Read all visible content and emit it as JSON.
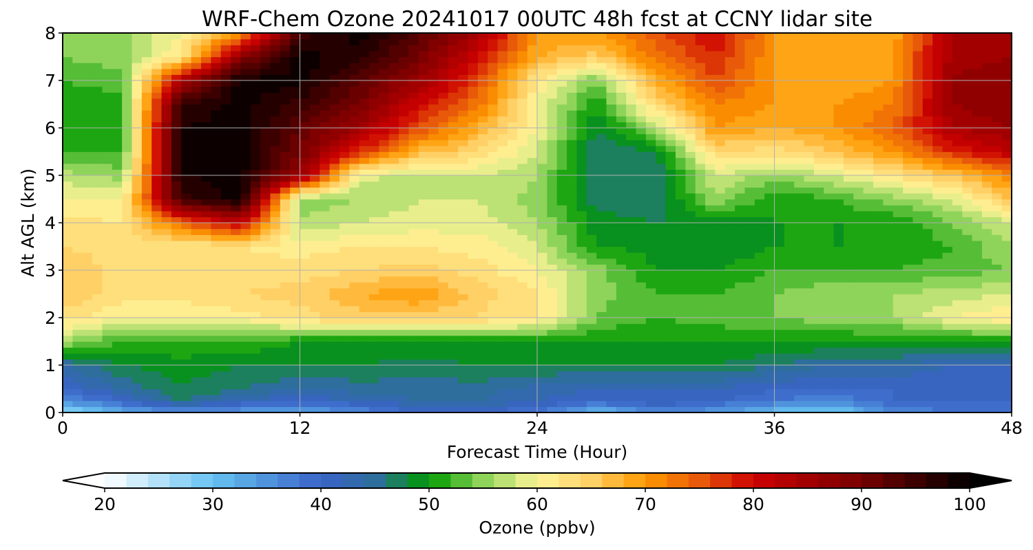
{
  "chart_data": {
    "type": "heatmap",
    "title": "WRF-Chem Ozone  20241017 00UTC 48h fcst at CCNY lidar site",
    "xlabel": "Forecast Time (Hour)",
    "ylabel": "Alt AGL (km)",
    "xlim": [
      0,
      48
    ],
    "ylim": [
      0,
      8
    ],
    "x_ticks": [
      "0",
      "12",
      "24",
      "36",
      "48"
    ],
    "y_ticks": [
      "0",
      "1",
      "2",
      "3",
      "4",
      "5",
      "6",
      "7",
      "8"
    ],
    "grid": true,
    "colorbar": {
      "label": "Ozone  (ppbv)",
      "range": [
        20,
        100
      ],
      "ticks": [
        "20",
        "30",
        "40",
        "50",
        "60",
        "70",
        "80",
        "90",
        "100"
      ],
      "extend": "both",
      "orientation": "horizontal",
      "placement": "bottom",
      "color_stops": [
        {
          "value": 20,
          "color": "#ffffff"
        },
        {
          "value": 30,
          "color": "#66c2f2"
        },
        {
          "value": 40,
          "color": "#3a63c8"
        },
        {
          "value": 45,
          "color": "#2e6e9c"
        },
        {
          "value": 50,
          "color": "#009a00"
        },
        {
          "value": 55,
          "color": "#8fd45a"
        },
        {
          "value": 60,
          "color": "#fff59a"
        },
        {
          "value": 65,
          "color": "#ffd066"
        },
        {
          "value": 70,
          "color": "#ff9900"
        },
        {
          "value": 75,
          "color": "#e85a0a"
        },
        {
          "value": 80,
          "color": "#cc0000"
        },
        {
          "value": 90,
          "color": "#770000"
        },
        {
          "value": 100,
          "color": "#000000"
        }
      ]
    },
    "x_hours": [
      0,
      3,
      6,
      9,
      12,
      15,
      18,
      21,
      24,
      27,
      30,
      33,
      36,
      39,
      42,
      45,
      48
    ],
    "z_km": [
      0,
      0.25,
      0.5,
      1,
      1.5,
      2,
      2.5,
      3,
      3.5,
      4,
      4.5,
      5,
      5.5,
      6,
      6.5,
      7,
      7.5,
      8
    ],
    "values_ppbv": [
      [
        26,
        32,
        35,
        34,
        32,
        36,
        40,
        40,
        38,
        30,
        36,
        34,
        30,
        28,
        36,
        38,
        38
      ],
      [
        35,
        40,
        46,
        42,
        40,
        42,
        44,
        44,
        42,
        40,
        42,
        40,
        38,
        36,
        40,
        40,
        40
      ],
      [
        40,
        44,
        48,
        46,
        44,
        45,
        45,
        45,
        43,
        42,
        42,
        42,
        40,
        40,
        40,
        40,
        40
      ],
      [
        44,
        48,
        49,
        48,
        48,
        48,
        47,
        48,
        48,
        48,
        48,
        48,
        46,
        44,
        44,
        42,
        42
      ],
      [
        56,
        52,
        52,
        52,
        50,
        50,
        50,
        50,
        50,
        50,
        50,
        50,
        50,
        50,
        50,
        50,
        50
      ],
      [
        63,
        60,
        60,
        61,
        63,
        65,
        65,
        64,
        62,
        54,
        52,
        53,
        54,
        55,
        56,
        60,
        62
      ],
      [
        66,
        63,
        63,
        64,
        65,
        68,
        70,
        65,
        62,
        55,
        52,
        52,
        54,
        56,
        56,
        57,
        58
      ],
      [
        66,
        63,
        63,
        63,
        63,
        64,
        65,
        63,
        60,
        55,
        50,
        50,
        52,
        52,
        52,
        53,
        54
      ],
      [
        64,
        63,
        62,
        62,
        61,
        62,
        62,
        61,
        58,
        50,
        49,
        48,
        50,
        50,
        50,
        52,
        56
      ],
      [
        63,
        62,
        74,
        82,
        56,
        58,
        59,
        59,
        56,
        49,
        48,
        48,
        50,
        50,
        50,
        54,
        58
      ],
      [
        60,
        60,
        95,
        99,
        55,
        56,
        58,
        58,
        55,
        47,
        46,
        56,
        50,
        52,
        55,
        58,
        66
      ],
      [
        57,
        55,
        98,
        99,
        86,
        59,
        57,
        58,
        56,
        46,
        46,
        58,
        55,
        58,
        62,
        66,
        72
      ],
      [
        52,
        52,
        98,
        99,
        90,
        78,
        67,
        64,
        58,
        46,
        48,
        64,
        63,
        66,
        70,
        78,
        82
      ],
      [
        50,
        51,
        98,
        99,
        92,
        85,
        76,
        68,
        60,
        48,
        56,
        70,
        68,
        70,
        74,
        84,
        86
      ],
      [
        50,
        51,
        96,
        99,
        95,
        90,
        80,
        73,
        60,
        50,
        64,
        72,
        70,
        70,
        72,
        86,
        88
      ],
      [
        52,
        53,
        84,
        99,
        99,
        92,
        86,
        76,
        62,
        54,
        68,
        76,
        70,
        68,
        70,
        86,
        88
      ],
      [
        54,
        55,
        62,
        88,
        99,
        97,
        90,
        80,
        68,
        65,
        73,
        78,
        70,
        68,
        70,
        85,
        86
      ],
      [
        56,
        55,
        60,
        70,
        95,
        99,
        93,
        85,
        70,
        70,
        75,
        80,
        70,
        68,
        68,
        84,
        84
      ]
    ]
  }
}
